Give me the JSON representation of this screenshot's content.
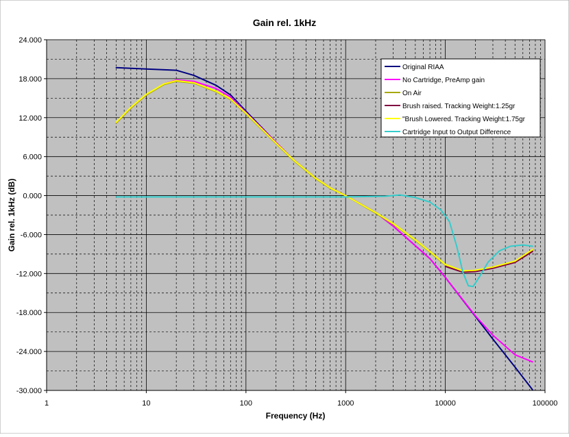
{
  "chart_data": {
    "type": "line",
    "title": "Gain rel. 1kHz",
    "xlabel": "Frequency (Hz)",
    "ylabel": "Gain rel. 1kHz (dB)",
    "x_scale": "log",
    "xlim": [
      1,
      100000
    ],
    "ylim": [
      -30,
      24
    ],
    "x_ticks": [
      1,
      10,
      100,
      1000,
      10000,
      100000
    ],
    "x_tick_labels": [
      "1",
      "10",
      "100",
      "1000",
      "10000",
      "100000"
    ],
    "y_ticks": [
      24,
      18,
      12,
      6,
      0,
      -6,
      -12,
      -18,
      -24,
      -30
    ],
    "y_tick_labels": [
      "24.000",
      "18.000",
      "12.000",
      "6.000",
      "0.000",
      "-6.000",
      "-12.000",
      "-18.000",
      "-24.000",
      "-30.000"
    ],
    "grid": true,
    "plot_background": "#c0c0c0",
    "legend_position": "top-right",
    "series": [
      {
        "name": "Original RIAA",
        "color": "#000080",
        "points": [
          [
            5,
            19.7
          ],
          [
            10,
            19.5
          ],
          [
            20,
            19.3
          ],
          [
            30,
            18.5
          ],
          [
            50,
            17.0
          ],
          [
            70,
            15.5
          ],
          [
            100,
            13.0
          ],
          [
            200,
            8.2
          ],
          [
            300,
            5.5
          ],
          [
            500,
            2.7
          ],
          [
            700,
            1.2
          ],
          [
            1000,
            0.0
          ],
          [
            2000,
            -2.6
          ],
          [
            3000,
            -4.7
          ],
          [
            5000,
            -7.7
          ],
          [
            7000,
            -9.7
          ],
          [
            10000,
            -12.6
          ],
          [
            20000,
            -18.6
          ],
          [
            30000,
            -22.1
          ],
          [
            50000,
            -26.4
          ],
          [
            70000,
            -29.3
          ],
          [
            75000,
            -29.9
          ]
        ]
      },
      {
        "name": "No Cartridge, PreAmp gain",
        "color": "#ff00ff",
        "points": [
          [
            5,
            11.2
          ],
          [
            7,
            13.5
          ],
          [
            10,
            15.5
          ],
          [
            15,
            17.2
          ],
          [
            20,
            17.8
          ],
          [
            30,
            17.6
          ],
          [
            50,
            16.5
          ],
          [
            70,
            15.2
          ],
          [
            100,
            12.8
          ],
          [
            200,
            8.2
          ],
          [
            300,
            5.5
          ],
          [
            500,
            2.7
          ],
          [
            700,
            1.2
          ],
          [
            1000,
            0.0
          ],
          [
            2000,
            -2.6
          ],
          [
            3000,
            -4.7
          ],
          [
            5000,
            -7.7
          ],
          [
            7000,
            -9.7
          ],
          [
            10000,
            -12.6
          ],
          [
            20000,
            -18.5
          ],
          [
            30000,
            -21.5
          ],
          [
            50000,
            -24.5
          ],
          [
            75000,
            -25.6
          ]
        ]
      },
      {
        "name": "On Air",
        "color": "#a8a800",
        "points": [
          [
            5,
            11.2
          ],
          [
            7,
            13.5
          ],
          [
            10,
            15.5
          ],
          [
            15,
            17.1
          ],
          [
            20,
            17.6
          ],
          [
            30,
            17.3
          ],
          [
            50,
            16.0
          ],
          [
            70,
            14.8
          ],
          [
            100,
            12.6
          ],
          [
            200,
            8.0
          ],
          [
            300,
            5.4
          ],
          [
            500,
            2.6
          ],
          [
            700,
            1.1
          ],
          [
            1000,
            0.0
          ],
          [
            2000,
            -2.7
          ],
          [
            3000,
            -4.4
          ],
          [
            5000,
            -6.9
          ],
          [
            7000,
            -8.7
          ],
          [
            10000,
            -10.7
          ],
          [
            15000,
            -11.7
          ],
          [
            20000,
            -11.6
          ],
          [
            30000,
            -11.1
          ],
          [
            50000,
            -10.2
          ],
          [
            75000,
            -8.4
          ]
        ]
      },
      {
        "name": "Brush raised. Tracking Weight:1.25gr",
        "color": "#800040",
        "points": [
          [
            10000,
            -10.9
          ],
          [
            15000,
            -11.8
          ],
          [
            20000,
            -11.7
          ],
          [
            30000,
            -11.2
          ],
          [
            50000,
            -10.3
          ],
          [
            75000,
            -8.6
          ]
        ]
      },
      {
        "name": "\"Brush Lowered. Tracking Weight:1.75gr",
        "color": "#ffff00",
        "points": [
          [
            5,
            11.3
          ],
          [
            7,
            13.6
          ],
          [
            10,
            15.6
          ],
          [
            15,
            17.2
          ],
          [
            20,
            17.7
          ],
          [
            30,
            17.4
          ],
          [
            50,
            16.1
          ],
          [
            70,
            14.9
          ],
          [
            100,
            12.7
          ],
          [
            200,
            8.1
          ],
          [
            300,
            5.5
          ],
          [
            500,
            2.7
          ],
          [
            700,
            1.2
          ],
          [
            1000,
            0.0
          ],
          [
            2000,
            -2.6
          ],
          [
            3000,
            -4.3
          ],
          [
            5000,
            -6.8
          ],
          [
            7000,
            -8.6
          ],
          [
            10000,
            -10.6
          ],
          [
            15000,
            -11.6
          ],
          [
            20000,
            -11.5
          ],
          [
            30000,
            -11.0
          ],
          [
            50000,
            -10.1
          ],
          [
            75000,
            -8.3
          ]
        ]
      },
      {
        "name": "Cartridge Input to Output Difference",
        "color": "#33cccc",
        "points": [
          [
            5,
            -0.2
          ],
          [
            100,
            -0.2
          ],
          [
            1000,
            -0.2
          ],
          [
            2500,
            -0.1
          ],
          [
            3500,
            0.1
          ],
          [
            5000,
            -0.3
          ],
          [
            7000,
            -1.0
          ],
          [
            9000,
            -2.2
          ],
          [
            11000,
            -4.0
          ],
          [
            13000,
            -7.8
          ],
          [
            15000,
            -11.8
          ],
          [
            17000,
            -13.9
          ],
          [
            19000,
            -14.0
          ],
          [
            22000,
            -12.5
          ],
          [
            27000,
            -10.2
          ],
          [
            35000,
            -8.5
          ],
          [
            45000,
            -7.8
          ],
          [
            60000,
            -7.6
          ],
          [
            75000,
            -7.8
          ]
        ]
      }
    ]
  }
}
